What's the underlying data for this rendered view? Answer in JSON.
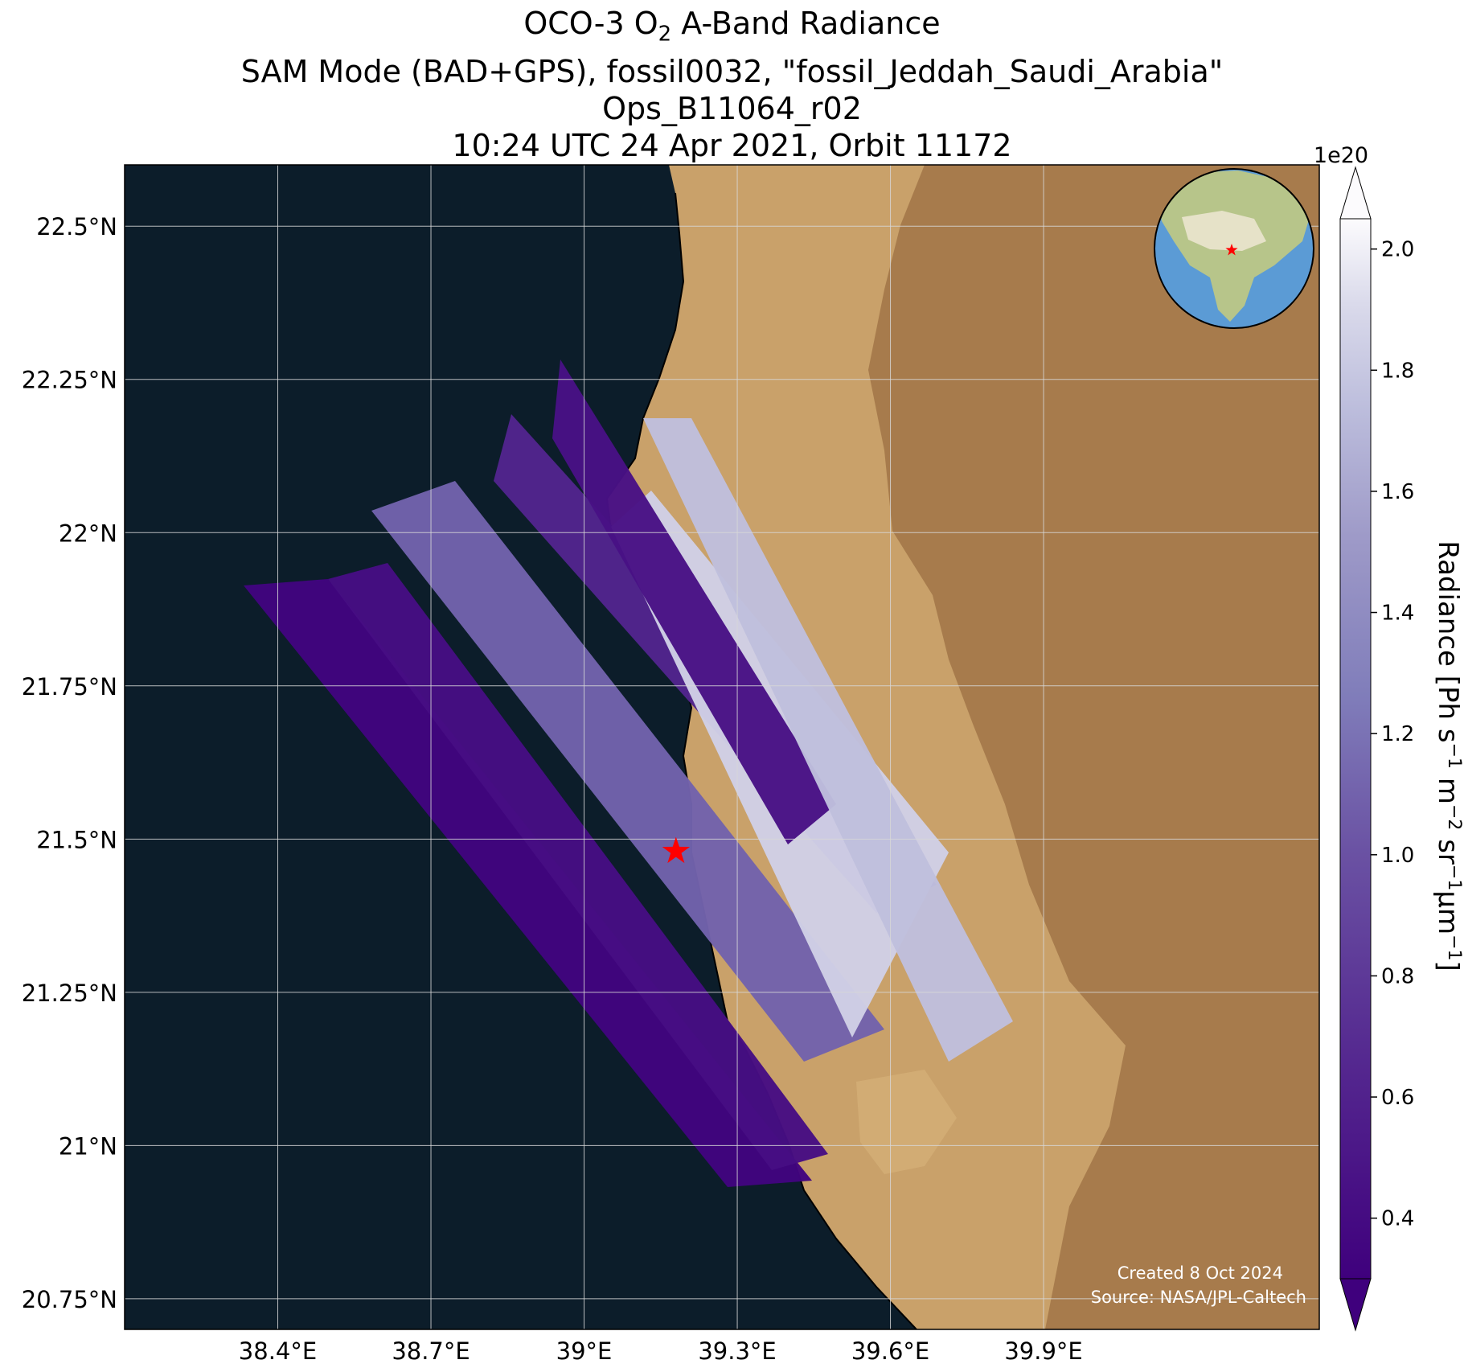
{
  "title": {
    "line1": {
      "prefix": "OCO-3 O",
      "subscript": "2",
      "suffix": " A-Band Radiance"
    },
    "line2": "SAM Mode (BAD+GPS), fossil0032, \"fossil_Jeddah_Saudi_Arabia\"",
    "line3": "Ops_B11064_r02",
    "line4": "10:24 UTC 24 Apr 2021, Orbit 11172"
  },
  "map": {
    "lon_range": [
      38.1,
      40.44
    ],
    "lat_range": [
      20.7,
      22.6
    ],
    "grid": true,
    "lat_ticks": [
      {
        "value": 22.5,
        "label": "22.5°N"
      },
      {
        "value": 22.25,
        "label": "22.25°N"
      },
      {
        "value": 22.0,
        "label": "22°N"
      },
      {
        "value": 21.75,
        "label": "21.75°N"
      },
      {
        "value": 21.5,
        "label": "21.5°N"
      },
      {
        "value": 21.25,
        "label": "21.25°N"
      },
      {
        "value": 21.0,
        "label": "21°N"
      },
      {
        "value": 20.75,
        "label": "20.75°N"
      }
    ],
    "lon_ticks": [
      {
        "value": 38.4,
        "label": "38.4°E"
      },
      {
        "value": 38.7,
        "label": "38.7°E"
      },
      {
        "value": 39.0,
        "label": "39°E"
      },
      {
        "value": 39.3,
        "label": "39.3°E"
      },
      {
        "value": 39.6,
        "label": "39.6°E"
      },
      {
        "value": 39.9,
        "label": "39.9°E"
      }
    ],
    "target": {
      "lon": 39.18,
      "lat": 21.48,
      "marker": "star",
      "color": "#ff0000"
    },
    "colors": {
      "sea": "#0c1d2a",
      "land": "#c9a16a",
      "highlands": "#9b6f43",
      "coast": "#000000"
    },
    "swaths": [
      {
        "name": "swath-1",
        "value": 0.34
      },
      {
        "name": "swath-2",
        "value": 0.42
      },
      {
        "name": "swath-3",
        "value": 1.1
      },
      {
        "name": "swath-4",
        "value": 0.62
      },
      {
        "name": "swath-5",
        "value": 1.85
      },
      {
        "name": "swath-6",
        "value": 0.45
      },
      {
        "name": "swath-7",
        "value": 1.75
      }
    ],
    "inset": {
      "icon": "globe-icon",
      "marker_color": "#ff0000"
    }
  },
  "colorbar": {
    "label_parts": [
      "Radiance [Ph s",
      "−1",
      " m",
      "−2",
      " sr",
      "−1",
      "μm",
      "−1",
      "]"
    ],
    "multiplier": "1e20",
    "min": 0.3,
    "max": 2.05,
    "ticks": [
      {
        "value": 0.4,
        "label": "0.4"
      },
      {
        "value": 0.6,
        "label": "0.6"
      },
      {
        "value": 0.8,
        "label": "0.8"
      },
      {
        "value": 1.0,
        "label": "1.0"
      },
      {
        "value": 1.2,
        "label": "1.2"
      },
      {
        "value": 1.4,
        "label": "1.4"
      },
      {
        "value": 1.6,
        "label": "1.6"
      },
      {
        "value": 1.8,
        "label": "1.8"
      },
      {
        "value": 2.0,
        "label": "2.0"
      }
    ],
    "cmap": "Purples_r",
    "extend": "both"
  },
  "credits": {
    "created": "Created 8 Oct 2024",
    "source": "Source: NASA/JPL-Caltech"
  }
}
